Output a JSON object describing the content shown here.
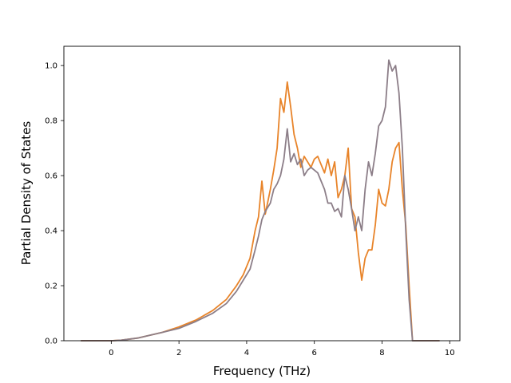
{
  "chart_data": {
    "type": "line",
    "title": "",
    "xlabel": "Frequency (THz)",
    "ylabel": "Partial Density of States",
    "xlim": [
      -1.4,
      10.3
    ],
    "ylim": [
      0.0,
      1.07
    ],
    "xticks": [
      "0",
      "2",
      "4",
      "6",
      "8",
      "10"
    ],
    "xtick_values": [
      0,
      2,
      4,
      6,
      8,
      10
    ],
    "yticks": [
      "0.0",
      "0.2",
      "0.4",
      "0.6",
      "0.8",
      "1.0"
    ],
    "ytick_values": [
      0.0,
      0.2,
      0.4,
      0.6,
      0.8,
      1.0
    ],
    "grid": false,
    "legend": "none",
    "series": [
      {
        "color": "#e8842a",
        "x": [
          -0.9,
          0.0,
          0.3,
          0.8,
          1.5,
          2.0,
          2.5,
          3.0,
          3.4,
          3.7,
          3.9,
          4.1,
          4.25,
          4.35,
          4.45,
          4.55,
          4.7,
          4.8,
          4.9,
          5.0,
          5.1,
          5.2,
          5.3,
          5.4,
          5.5,
          5.6,
          5.7,
          5.8,
          5.9,
          6.0,
          6.1,
          6.2,
          6.3,
          6.4,
          6.5,
          6.6,
          6.7,
          6.8,
          6.9,
          7.0,
          7.1,
          7.2,
          7.3,
          7.4,
          7.5,
          7.6,
          7.7,
          7.8,
          7.9,
          8.0,
          8.1,
          8.2,
          8.3,
          8.4,
          8.5,
          8.6,
          8.7,
          8.8,
          8.9,
          9.2,
          9.7
        ],
        "y": [
          0.0,
          0.0,
          0.002,
          0.01,
          0.03,
          0.05,
          0.075,
          0.11,
          0.15,
          0.2,
          0.24,
          0.3,
          0.4,
          0.45,
          0.58,
          0.46,
          0.55,
          0.62,
          0.7,
          0.88,
          0.83,
          0.94,
          0.85,
          0.75,
          0.7,
          0.63,
          0.67,
          0.65,
          0.63,
          0.66,
          0.67,
          0.64,
          0.61,
          0.66,
          0.6,
          0.65,
          0.52,
          0.55,
          0.6,
          0.7,
          0.48,
          0.45,
          0.32,
          0.22,
          0.3,
          0.33,
          0.33,
          0.42,
          0.55,
          0.5,
          0.49,
          0.55,
          0.65,
          0.7,
          0.72,
          0.55,
          0.42,
          0.2,
          0.0,
          0.0,
          0.0
        ]
      },
      {
        "color": "#8c7e88",
        "x": [
          -0.9,
          0.0,
          0.3,
          0.8,
          1.5,
          2.0,
          2.5,
          3.0,
          3.4,
          3.7,
          3.9,
          4.1,
          4.25,
          4.35,
          4.45,
          4.55,
          4.7,
          4.8,
          4.9,
          5.0,
          5.1,
          5.2,
          5.3,
          5.4,
          5.5,
          5.6,
          5.7,
          5.8,
          5.9,
          6.0,
          6.1,
          6.2,
          6.3,
          6.4,
          6.5,
          6.6,
          6.7,
          6.8,
          6.9,
          7.0,
          7.1,
          7.2,
          7.3,
          7.4,
          7.5,
          7.6,
          7.7,
          7.8,
          7.9,
          8.0,
          8.1,
          8.2,
          8.3,
          8.4,
          8.5,
          8.6,
          8.7,
          8.8,
          8.9,
          9.2,
          9.7
        ],
        "y": [
          0.0,
          0.0,
          0.002,
          0.01,
          0.03,
          0.045,
          0.07,
          0.1,
          0.135,
          0.18,
          0.22,
          0.26,
          0.33,
          0.38,
          0.44,
          0.47,
          0.5,
          0.55,
          0.57,
          0.6,
          0.66,
          0.77,
          0.65,
          0.68,
          0.64,
          0.66,
          0.6,
          0.62,
          0.63,
          0.62,
          0.61,
          0.58,
          0.55,
          0.5,
          0.5,
          0.47,
          0.48,
          0.45,
          0.6,
          0.55,
          0.48,
          0.4,
          0.45,
          0.4,
          0.55,
          0.65,
          0.6,
          0.68,
          0.78,
          0.8,
          0.85,
          1.02,
          0.98,
          1.0,
          0.9,
          0.7,
          0.4,
          0.15,
          0.0,
          0.0,
          0.0
        ]
      }
    ]
  }
}
